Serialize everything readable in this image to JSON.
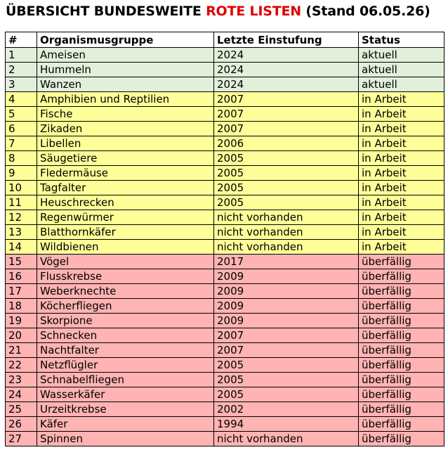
{
  "header": {
    "title_parts": [
      "ÜBERSICHT BUNDESWEITE ",
      "ROTE LISTEN",
      " (Stand 06.05.26)"
    ]
  },
  "table": {
    "columns": [
      "#",
      "Organismusgruppe",
      "Letzte Einstufung",
      "Status"
    ],
    "rows": [
      [
        "1",
        "Ameisen",
        "2024",
        "aktuell"
      ],
      [
        "2",
        "Hummeln",
        "2024",
        "aktuell"
      ],
      [
        "3",
        "Wanzen",
        "2024",
        "aktuell"
      ],
      [
        "4",
        "Amphibien und Reptilien",
        "2007",
        "in Arbeit"
      ],
      [
        "5",
        "Fische",
        "2007",
        "in Arbeit"
      ],
      [
        "6",
        "Zikaden",
        "2007",
        "in Arbeit"
      ],
      [
        "7",
        "Libellen",
        "2006",
        "in Arbeit"
      ],
      [
        "8",
        "Säugetiere",
        "2005",
        "in Arbeit"
      ],
      [
        "9",
        "Fledermäuse",
        "2005",
        "in Arbeit"
      ],
      [
        "10",
        "Tagfalter",
        "2005",
        "in Arbeit"
      ],
      [
        "11",
        "Heuschrecken",
        "2005",
        "in Arbeit"
      ],
      [
        "12",
        "Regenwürmer",
        "nicht vorhanden",
        "in Arbeit"
      ],
      [
        "13",
        "Blatthornkäfer",
        "nicht vorhanden",
        "in Arbeit"
      ],
      [
        "14",
        "Wildbienen",
        "nicht vorhanden",
        "in Arbeit"
      ],
      [
        "15",
        "Vögel",
        "2017",
        "überfällig"
      ],
      [
        "16",
        "Flusskrebse",
        "2009",
        "überfällig"
      ],
      [
        "17",
        "Weberknechte",
        "2009",
        "überfällig"
      ],
      [
        "18",
        "Köcherfliegen",
        "2009",
        "überfällig"
      ],
      [
        "19",
        "Skorpione",
        "2009",
        "überfällig"
      ],
      [
        "20",
        "Schnecken",
        "2007",
        "überfällig"
      ],
      [
        "21",
        "Nachtfalter",
        "2007",
        "überfällig"
      ],
      [
        "22",
        "Netzflügler",
        "2005",
        "überfällig"
      ],
      [
        "23",
        "Schnabelfliegen",
        "2005",
        "überfällig"
      ],
      [
        "24",
        "Wasserkäfer",
        "2005",
        "überfällig"
      ],
      [
        "25",
        "Urzeitkrebse",
        "2002",
        "überfällig"
      ],
      [
        "26",
        "Käfer",
        "1994",
        "überfällig"
      ],
      [
        "27",
        "Spinnen",
        "nicht vorhanden",
        "überfällig"
      ]
    ],
    "row_colors": [
      "#e2efda",
      "#e2efda",
      "#e2efda",
      "#ffff99",
      "#ffff99",
      "#ffff99",
      "#ffff99",
      "#ffff99",
      "#ffff99",
      "#ffff99",
      "#ffff99",
      "#ffff99",
      "#ffff99",
      "#ffff99",
      "#ffb3b3",
      "#ffb3b3",
      "#ffb3b3",
      "#ffb3b3",
      "#ffb3b3",
      "#ffb3b3",
      "#ffb3b3",
      "#ffb3b3",
      "#ffb3b3",
      "#ffb3b3",
      "#ffb3b3",
      "#ffb3b3",
      "#ffb3b3"
    ]
  }
}
